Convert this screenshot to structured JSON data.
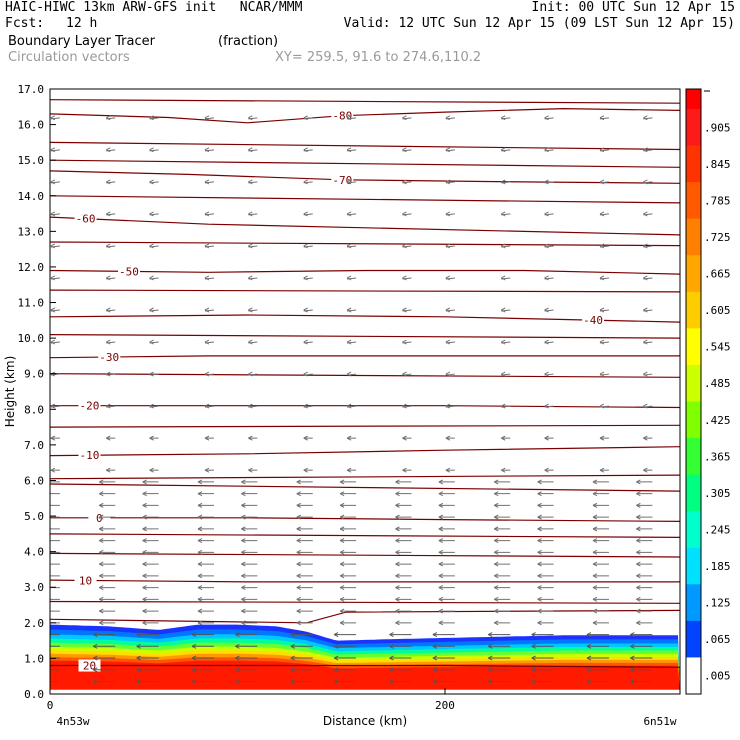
{
  "header": {
    "line1_left": "HAIC-HIWC 13km ARW-GFS init   NCAR/MMM",
    "line1_right": "Init: 00 UTC Sun 12 Apr 15",
    "fcst_label": "Fcst:",
    "fcst_value": "12 h",
    "valid": "Valid: 12 UTC Sun 12 Apr 15 (09 LST Sun 12 Apr 15)",
    "field_name": "Boundary Layer Tracer",
    "field_units": "(fraction)",
    "vectors_label": "Circulation vectors",
    "xy": "XY= 259.5, 91.6 to 274.6,110.2"
  },
  "chart_data": {
    "type": "heatmap",
    "xlabel": "Distance (km)",
    "ylabel": "Height (km)",
    "xlim": [
      0,
      319
    ],
    "ylim": [
      0,
      17
    ],
    "x_ticks": [
      0,
      200
    ],
    "y_ticks": [
      "0.0",
      "1.0",
      "2.0",
      "3.0",
      "4.0",
      "5.0",
      "6.0",
      "7.0",
      "8.0",
      "9.0",
      "10.0",
      "11.0",
      "12.0",
      "13.0",
      "14.0",
      "15.0",
      "16.0",
      "17.0"
    ],
    "left_endpoint": "4n53w",
    "right_endpoint": "6n51w",
    "boundary_layer_top_km": [
      {
        "x": 0,
        "top": 1.95
      },
      {
        "x": 30,
        "top": 1.9
      },
      {
        "x": 55,
        "top": 1.8
      },
      {
        "x": 75,
        "top": 1.95
      },
      {
        "x": 95,
        "top": 1.95
      },
      {
        "x": 115,
        "top": 1.9
      },
      {
        "x": 130,
        "top": 1.75
      },
      {
        "x": 145,
        "top": 1.5
      },
      {
        "x": 180,
        "top": 1.55
      },
      {
        "x": 220,
        "top": 1.6
      },
      {
        "x": 260,
        "top": 1.65
      },
      {
        "x": 300,
        "top": 1.65
      },
      {
        "x": 319,
        "top": 1.65
      }
    ],
    "temperature_contours": [
      {
        "label": "-80",
        "points": [
          [
            0,
            16.3
          ],
          [
            60,
            16.2
          ],
          [
            100,
            16.05
          ],
          [
            148,
            16.25
          ],
          [
            200,
            16.35
          ],
          [
            260,
            16.45
          ],
          [
            319,
            16.4
          ]
        ],
        "label_x": 148
      },
      {
        "label": "-70",
        "points": [
          [
            0,
            14.7
          ],
          [
            70,
            14.6
          ],
          [
            148,
            14.45
          ],
          [
            220,
            14.4
          ],
          [
            319,
            14.35
          ]
        ],
        "label_x": 148
      },
      {
        "label": "-60",
        "points": [
          [
            0,
            13.4
          ],
          [
            80,
            13.2
          ],
          [
            160,
            13.1
          ],
          [
            240,
            13.0
          ],
          [
            319,
            12.9
          ]
        ],
        "label_x": 18
      },
      {
        "label": "-50",
        "points": [
          [
            0,
            11.9
          ],
          [
            80,
            11.85
          ],
          [
            160,
            11.9
          ],
          [
            240,
            11.9
          ],
          [
            319,
            11.8
          ]
        ],
        "label_x": 40
      },
      {
        "label": "-40",
        "points": [
          [
            0,
            10.6
          ],
          [
            100,
            10.65
          ],
          [
            200,
            10.6
          ],
          [
            319,
            10.45
          ]
        ],
        "label_x": 275
      },
      {
        "label": "-30",
        "points": [
          [
            0,
            9.45
          ],
          [
            80,
            9.5
          ],
          [
            200,
            9.5
          ],
          [
            319,
            9.5
          ]
        ],
        "label_x": 30
      },
      {
        "label": "-20",
        "points": [
          [
            0,
            8.1
          ],
          [
            100,
            8.1
          ],
          [
            200,
            8.1
          ],
          [
            319,
            8.05
          ]
        ],
        "label_x": 20
      },
      {
        "label": "-10",
        "points": [
          [
            0,
            6.7
          ],
          [
            100,
            6.75
          ],
          [
            200,
            6.85
          ],
          [
            319,
            6.95
          ]
        ],
        "label_x": 20
      },
      {
        "label": "0",
        "points": [
          [
            0,
            4.95
          ],
          [
            100,
            4.95
          ],
          [
            200,
            4.9
          ],
          [
            319,
            4.85
          ]
        ],
        "label_x": 25
      },
      {
        "label": "10",
        "points": [
          [
            0,
            3.2
          ],
          [
            100,
            3.15
          ],
          [
            200,
            3.15
          ],
          [
            319,
            3.15
          ]
        ],
        "label_x": 18
      },
      {
        "label": "20",
        "points": [
          [
            0,
            0.8
          ],
          [
            100,
            0.8
          ],
          [
            200,
            0.8
          ],
          [
            319,
            0.75
          ]
        ],
        "label_x": 20
      }
    ],
    "plain_contours": [
      [
        [
          0,
          16.7
        ],
        [
          319,
          16.6
        ]
      ],
      [
        [
          0,
          15.5
        ],
        [
          319,
          15.3
        ]
      ],
      [
        [
          0,
          15.0
        ],
        [
          319,
          14.8
        ]
      ],
      [
        [
          0,
          14.0
        ],
        [
          319,
          13.8
        ]
      ],
      [
        [
          0,
          12.7
        ],
        [
          319,
          12.6
        ]
      ],
      [
        [
          0,
          11.35
        ],
        [
          319,
          11.3
        ]
      ],
      [
        [
          0,
          10.1
        ],
        [
          319,
          10.0
        ]
      ],
      [
        [
          0,
          9.0
        ],
        [
          319,
          8.9
        ]
      ],
      [
        [
          0,
          7.5
        ],
        [
          319,
          7.55
        ]
      ],
      [
        [
          0,
          6.05
        ],
        [
          319,
          6.15
        ]
      ],
      [
        [
          0,
          5.9
        ],
        [
          319,
          5.7
        ]
      ],
      [
        [
          0,
          4.5
        ],
        [
          319,
          4.4
        ]
      ],
      [
        [
          0,
          3.95
        ],
        [
          319,
          3.85
        ]
      ],
      [
        [
          0,
          2.6
        ],
        [
          319,
          2.55
        ]
      ],
      [
        [
          0,
          2.1
        ],
        [
          130,
          2.0
        ],
        [
          150,
          2.3
        ],
        [
          319,
          2.35
        ]
      ]
    ],
    "colorbar": {
      "labels": [
        ".905",
        ".845",
        ".785",
        ".725",
        ".665",
        ".605",
        ".545",
        ".485",
        ".425",
        ".365",
        ".305",
        ".245",
        ".185",
        ".125",
        ".065",
        ".005"
      ],
      "colors": [
        "#ff1a1a",
        "#ff3300",
        "#ff5a00",
        "#ff8000",
        "#ffa600",
        "#ffcc00",
        "#ffff00",
        "#ccff00",
        "#80ff00",
        "#33ff33",
        "#00ff80",
        "#00ffcc",
        "#00e0ff",
        "#0099ff",
        "#0044ff",
        "#ffffff"
      ],
      "top_color": "#ff0000"
    },
    "wind_vectors": {
      "column_x_km": [
        5,
        30,
        55,
        80,
        105,
        130,
        155,
        180,
        205,
        230,
        255,
        280,
        305
      ],
      "upper_direction": "easterly, weak",
      "lower_direction": "easterly, strong below 6 km"
    }
  }
}
